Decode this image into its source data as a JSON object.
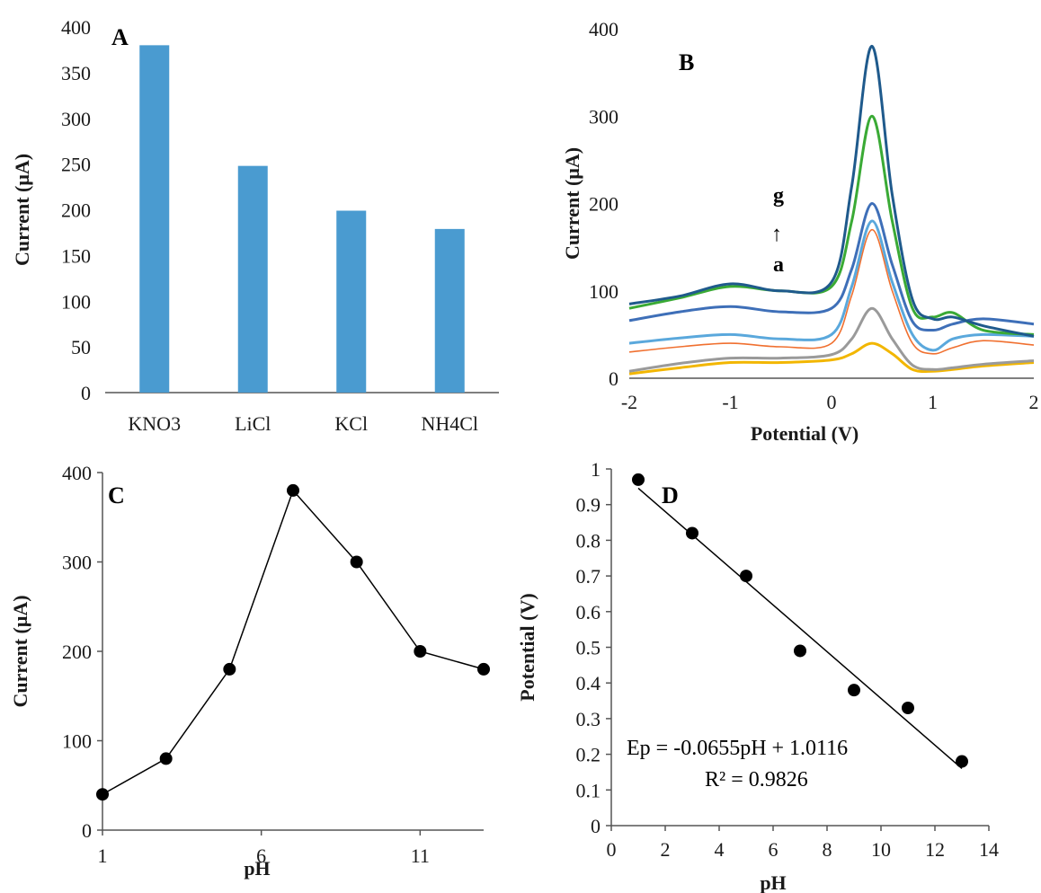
{
  "chart_data": [
    {
      "panel": "A",
      "type": "bar",
      "categories": [
        "KNO3",
        "LiCl",
        "KCl",
        "NH4Cl"
      ],
      "values": [
        380,
        248,
        199,
        179
      ],
      "ylabel": "Current  (μA)",
      "xlabel": "",
      "ylim": [
        0,
        400
      ],
      "yticks": [
        0,
        50,
        100,
        150,
        200,
        250,
        300,
        350,
        400
      ],
      "color": "#4a9bd0",
      "grid": false
    },
    {
      "panel": "B",
      "type": "line",
      "xlabel": "Potential (V)",
      "ylabel": "Current  (μA)",
      "xlim": [
        -2,
        2
      ],
      "ylim": [
        0,
        400
      ],
      "xticks": [
        -2,
        -1,
        0,
        1,
        2
      ],
      "yticks": [
        0,
        100,
        200,
        300,
        400
      ],
      "x": [
        -2,
        -1.5,
        -1,
        -0.5,
        0,
        0.2,
        0.4,
        0.6,
        0.8,
        1,
        1.2,
        1.5,
        2
      ],
      "series": [
        {
          "color": "#f2b600",
          "values": [
            5,
            12,
            18,
            18,
            21,
            28,
            40,
            28,
            10,
            8,
            10,
            14,
            18
          ]
        },
        {
          "color": "#9a9a9a",
          "values": [
            8,
            17,
            23,
            23,
            27,
            45,
            80,
            45,
            15,
            10,
            12,
            16,
            20
          ]
        },
        {
          "color": "#f07030",
          "values": [
            30,
            36,
            40,
            36,
            40,
            95,
            170,
            100,
            40,
            28,
            35,
            43,
            38
          ]
        },
        {
          "color": "#5aa8dc",
          "values": [
            40,
            46,
            50,
            45,
            50,
            105,
            180,
            110,
            50,
            32,
            45,
            50,
            48
          ]
        },
        {
          "color": "#3e6fb8",
          "values": [
            66,
            76,
            82,
            76,
            80,
            125,
            200,
            130,
            65,
            55,
            62,
            68,
            62
          ]
        },
        {
          "color": "#3aaa35",
          "values": [
            80,
            92,
            105,
            100,
            105,
            180,
            300,
            180,
            80,
            70,
            75,
            55,
            50
          ]
        },
        {
          "color": "#1f5a8c",
          "values": [
            85,
            94,
            108,
            100,
            110,
            220,
            380,
            210,
            90,
            68,
            70,
            60,
            48
          ]
        }
      ],
      "annotation": {
        "top": "g",
        "arrow": "↑",
        "bottom": "a"
      },
      "grid": false
    },
    {
      "panel": "C",
      "type": "line",
      "xlabel": "pH",
      "ylabel": "Current  (μA)",
      "xlim": [
        1,
        13
      ],
      "ylim": [
        0,
        400
      ],
      "xticks": [
        1,
        6,
        11
      ],
      "yticks": [
        0,
        100,
        200,
        300,
        400
      ],
      "x": [
        1,
        3,
        5,
        7,
        9,
        11,
        13
      ],
      "values": [
        40,
        80,
        180,
        380,
        300,
        200,
        180
      ],
      "grid": false
    },
    {
      "panel": "D",
      "type": "scatter",
      "xlabel": "pH",
      "ylabel": "Potential (V)",
      "xlim": [
        0,
        14
      ],
      "ylim": [
        0,
        1
      ],
      "xticks": [
        0,
        2,
        4,
        6,
        8,
        10,
        12,
        14
      ],
      "yticks": [
        0,
        0.1,
        0.2,
        0.3,
        0.4,
        0.5,
        0.6,
        0.7,
        0.8,
        0.9,
        1
      ],
      "x": [
        1,
        3,
        5,
        7,
        9,
        11,
        13
      ],
      "values": [
        0.97,
        0.82,
        0.7,
        0.49,
        0.38,
        0.33,
        0.18
      ],
      "trendline": {
        "slope": -0.0655,
        "intercept": 1.0116,
        "x_range": [
          1,
          13
        ]
      },
      "equation": "Ep = -0.0655pH + 1.0116",
      "r2": "R² = 0.9826",
      "grid": false
    }
  ]
}
